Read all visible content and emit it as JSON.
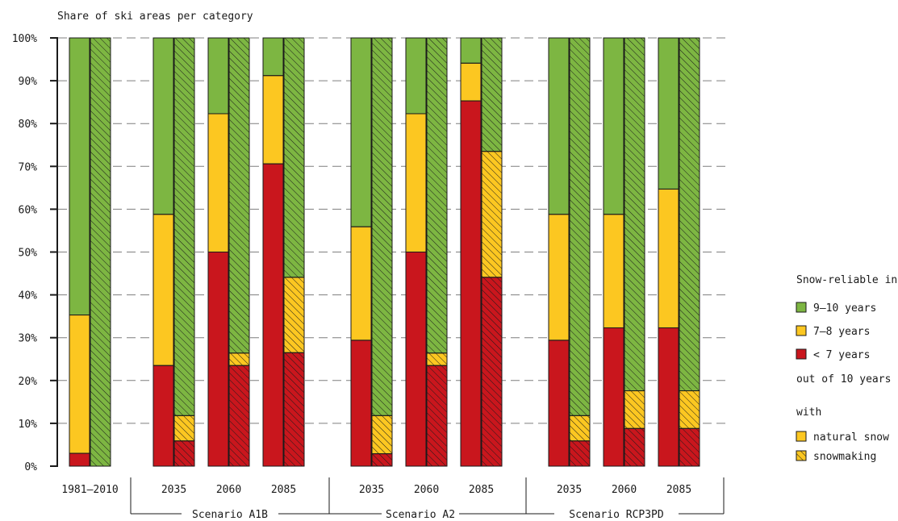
{
  "chart_data": {
    "type": "bar",
    "stacked": true,
    "title": "Share of ski areas per category",
    "ylim": [
      0,
      100
    ],
    "yticks": [
      "0%",
      "10%",
      "20%",
      "30%",
      "40%",
      "50%",
      "60%",
      "70%",
      "80%",
      "90%",
      "100%"
    ],
    "grid": "dashed horizontal",
    "legend_position": "right",
    "colors": {
      "9-10": "#7db642",
      "7-8": "#fcc721",
      "lt7": "#c9161d",
      "grid": "#7f7f7f",
      "axis": "#1a1a1a"
    },
    "groups": [
      {
        "label": "1981–2010",
        "scenario": "",
        "natural": {
          "lt7": 3,
          "7-8": 32.3,
          "9-10": 64.7
        },
        "snowmaking": {
          "lt7": 0,
          "7-8": 0,
          "9-10": 100
        }
      },
      {
        "label": "2035",
        "scenario": "Scenario A1B",
        "natural": {
          "lt7": 23.5,
          "7-8": 35.3,
          "9-10": 41.2
        },
        "snowmaking": {
          "lt7": 5.9,
          "7-8": 5.9,
          "9-10": 88.2
        }
      },
      {
        "label": "2060",
        "scenario": "Scenario A1B",
        "natural": {
          "lt7": 50,
          "7-8": 32.3,
          "9-10": 17.7
        },
        "snowmaking": {
          "lt7": 23.5,
          "7-8": 2.9,
          "9-10": 73.6
        }
      },
      {
        "label": "2085",
        "scenario": "Scenario A1B",
        "natural": {
          "lt7": 70.6,
          "7-8": 20.6,
          "9-10": 8.8
        },
        "snowmaking": {
          "lt7": 26.5,
          "7-8": 17.6,
          "9-10": 55.9
        }
      },
      {
        "label": "2035",
        "scenario": "Scenario A2",
        "natural": {
          "lt7": 29.4,
          "7-8": 26.5,
          "9-10": 44.1
        },
        "snowmaking": {
          "lt7": 2.9,
          "7-8": 8.9,
          "9-10": 88.2
        }
      },
      {
        "label": "2060",
        "scenario": "Scenario A2",
        "natural": {
          "lt7": 50,
          "7-8": 32.3,
          "9-10": 17.7
        },
        "snowmaking": {
          "lt7": 23.5,
          "7-8": 2.9,
          "9-10": 73.6
        }
      },
      {
        "label": "2085",
        "scenario": "Scenario A2",
        "natural": {
          "lt7": 85.3,
          "7-8": 8.8,
          "9-10": 5.9
        },
        "snowmaking": {
          "lt7": 44.1,
          "7-8": 29.4,
          "9-10": 26.5
        }
      },
      {
        "label": "2035",
        "scenario": "Scenario RCP3PD",
        "natural": {
          "lt7": 29.4,
          "7-8": 29.4,
          "9-10": 41.2
        },
        "snowmaking": {
          "lt7": 5.9,
          "7-8": 5.9,
          "9-10": 88.2
        }
      },
      {
        "label": "2060",
        "scenario": "Scenario RCP3PD",
        "natural": {
          "lt7": 32.3,
          "7-8": 26.5,
          "9-10": 41.2
        },
        "snowmaking": {
          "lt7": 8.8,
          "7-8": 8.8,
          "9-10": 82.4
        }
      },
      {
        "label": "2085",
        "scenario": "Scenario RCP3PD",
        "natural": {
          "lt7": 32.3,
          "7-8": 32.4,
          "9-10": 35.3
        },
        "snowmaking": {
          "lt7": 8.8,
          "7-8": 8.8,
          "9-10": 82.4
        }
      }
    ],
    "scenarios": [
      "Scenario A1B",
      "Scenario A2",
      "Scenario RCP3PD"
    ],
    "legend": {
      "title": "Snow-reliable in",
      "categories": [
        {
          "key": "9-10",
          "label": "9–10 years"
        },
        {
          "key": "7-8",
          "label": "7–8 years"
        },
        {
          "key": "lt7",
          "label": "< 7 years"
        }
      ],
      "subtitle": "out of 10 years",
      "with_label": "with",
      "types": [
        {
          "key": "natural",
          "label": "natural snow"
        },
        {
          "key": "snowmaking",
          "label": "snowmaking"
        }
      ]
    }
  }
}
